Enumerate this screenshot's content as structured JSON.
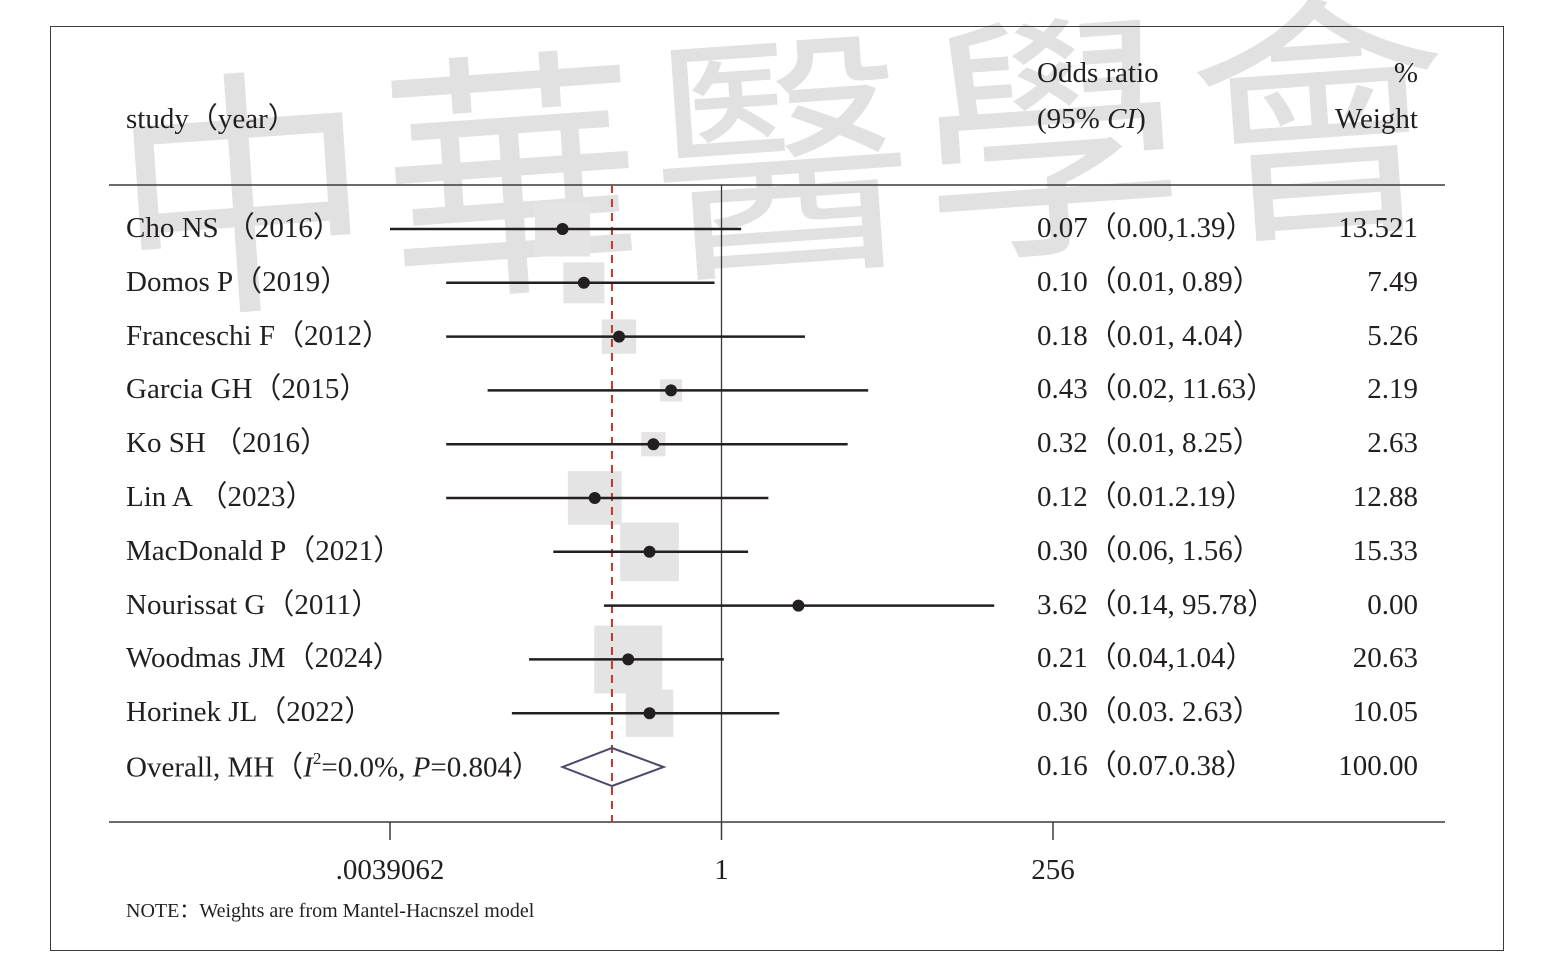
{
  "watermark_text": "中華醫學會",
  "header": {
    "study_label": "study（year）",
    "or_label_line1": "Odds ratio",
    "or_label_line2": "(95% CI)",
    "weight_label_line1": "%",
    "weight_label_line2": "Weight"
  },
  "note": "NOTE：Weights are from Mantel-Hacnszel model",
  "colors": {
    "text": "#231f20",
    "ci_line": "#231f20",
    "weight_box": "#e4e4e4",
    "overall_line": "#c0392b",
    "diamond": "#4a4a6a",
    "axis": "#3a3a3a",
    "watermark": "#d8d8d8"
  },
  "chart_data": {
    "type": "forest",
    "x_scale": "log2",
    "xlim": [
      0.0039062,
      256
    ],
    "x_ticks": [
      {
        "value": 0.0039062,
        "label": ".0039062"
      },
      {
        "value": 1,
        "label": "1"
      },
      {
        "value": 256,
        "label": "256"
      }
    ],
    "null_line": 1,
    "overall_line": 0.16,
    "studies": [
      {
        "label": "Cho NS （2016）",
        "or": 0.07,
        "lo": 0.00390625,
        "hi": 1.39,
        "or_text": "0.07（0.00,1.39）",
        "weight": 13.521,
        "weight_text": "13.521"
      },
      {
        "label": "Domos P（2019）",
        "or": 0.1,
        "lo": 0.01,
        "hi": 0.89,
        "or_text": "0.10（0.01, 0.89）",
        "weight": 7.49,
        "weight_text": "7.49"
      },
      {
        "label": "Franceschi F（2012）",
        "or": 0.18,
        "lo": 0.01,
        "hi": 4.04,
        "or_text": "0.18（0.01, 4.04）",
        "weight": 5.26,
        "weight_text": "5.26"
      },
      {
        "label": "Garcia GH（2015）",
        "or": 0.43,
        "lo": 0.02,
        "hi": 11.63,
        "or_text": "0.43（0.02, 11.63）",
        "weight": 2.19,
        "weight_text": "2.19"
      },
      {
        "label": "Ko SH （2016）",
        "or": 0.32,
        "lo": 0.01,
        "hi": 8.25,
        "or_text": "0.32（0.01, 8.25）",
        "weight": 2.63,
        "weight_text": "2.63"
      },
      {
        "label": "Lin A （2023）",
        "or": 0.12,
        "lo": 0.01,
        "hi": 2.19,
        "or_text": "0.12（0.01.2.19）",
        "weight": 12.88,
        "weight_text": "12.88"
      },
      {
        "label": "MacDonald P（2021）",
        "or": 0.3,
        "lo": 0.06,
        "hi": 1.56,
        "or_text": "0.30（0.06, 1.56）",
        "weight": 15.33,
        "weight_text": "15.33"
      },
      {
        "label": "Nourissat G（2011）",
        "or": 3.62,
        "lo": 0.14,
        "hi": 95.78,
        "or_text": "3.62（0.14, 95.78）",
        "weight": 0.0,
        "weight_text": "0.00"
      },
      {
        "label": "Woodmas JM（2024）",
        "or": 0.21,
        "lo": 0.04,
        "hi": 1.04,
        "or_text": "0.21（0.04,1.04）",
        "weight": 20.63,
        "weight_text": "20.63"
      },
      {
        "label": "Horinek JL（2022）",
        "or": 0.3,
        "lo": 0.03,
        "hi": 2.63,
        "or_text": "0.30（0.03. 2.63）",
        "weight": 10.05,
        "weight_text": "10.05"
      }
    ],
    "overall": {
      "label_prefix": "Overall, MH（",
      "label_i2_symbol": "I",
      "label_i2_sup": "2",
      "label_i2_value": "=0.0%, ",
      "label_p_symbol": "P",
      "label_p_value": "=0.804）",
      "or": 0.16,
      "lo": 0.07,
      "hi": 0.38,
      "or_text": "0.16（0.07.0.38）",
      "weight": 100.0,
      "weight_text": "100.00"
    }
  }
}
